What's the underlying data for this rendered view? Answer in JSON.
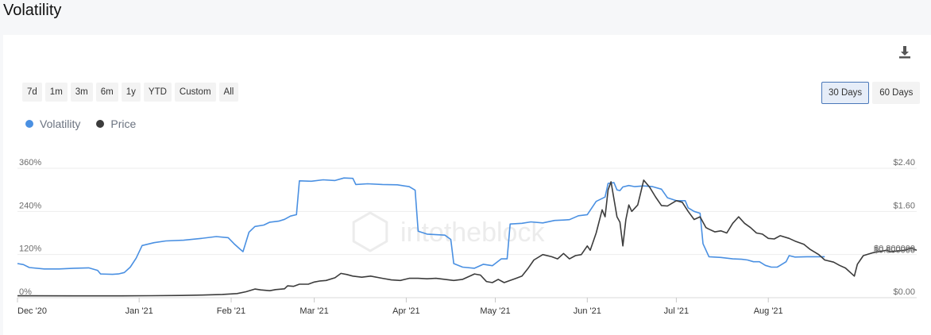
{
  "page": {
    "title": "Volatility"
  },
  "icons": {
    "download": "download-icon"
  },
  "controls": {
    "ranges": [
      "7d",
      "1m",
      "3m",
      "6m",
      "1y",
      "YTD",
      "Custom",
      "All"
    ],
    "windows": [
      "30 Days",
      "60 Days"
    ],
    "active_window": "30 Days"
  },
  "watermark": "intotheblock",
  "chart_data": {
    "type": "line",
    "legend": "top-left",
    "grid": true,
    "x_ticks": [
      "Dec '20",
      "Jan '21",
      "Feb '21",
      "Mar '21",
      "Apr '21",
      "May '21",
      "Jun '21",
      "Jul '21",
      "Aug '21"
    ],
    "y_left": {
      "ticks": [
        "0%",
        "120%",
        "240%",
        "360%"
      ],
      "range": [
        0,
        360
      ],
      "unit": "%"
    },
    "y_right": {
      "ticks": [
        "$0.00",
        "$0.800000",
        "$1.60",
        "$2.40"
      ],
      "range": [
        0,
        2.4
      ],
      "unit": "$"
    },
    "crosshair_label": "$0.800000",
    "series": [
      {
        "name": "Volatility",
        "axis": "left",
        "color": "#4a90e2",
        "points": [
          [
            "2020-12-01",
            95
          ],
          [
            "2020-12-03",
            92
          ],
          [
            "2020-12-05",
            84
          ],
          [
            "2020-12-10",
            80
          ],
          [
            "2020-12-15",
            80
          ],
          [
            "2020-12-20",
            82
          ],
          [
            "2020-12-25",
            83
          ],
          [
            "2020-12-28",
            76
          ],
          [
            "2020-12-29",
            66
          ],
          [
            "2021-01-02",
            65
          ],
          [
            "2021-01-04",
            66
          ],
          [
            "2021-01-06",
            70
          ],
          [
            "2021-01-08",
            85
          ],
          [
            "2021-01-10",
            110
          ],
          [
            "2021-01-12",
            145
          ],
          [
            "2021-01-16",
            153
          ],
          [
            "2021-01-20",
            158
          ],
          [
            "2021-01-26",
            160
          ],
          [
            "2021-02-01",
            165
          ],
          [
            "2021-02-06",
            170
          ],
          [
            "2021-02-10",
            167
          ],
          [
            "2021-02-12",
            150
          ],
          [
            "2021-02-14",
            135
          ],
          [
            "2021-02-15",
            128
          ],
          [
            "2021-02-17",
            182
          ],
          [
            "2021-02-19",
            198
          ],
          [
            "2021-02-22",
            202
          ],
          [
            "2021-02-24",
            210
          ],
          [
            "2021-02-27",
            213
          ],
          [
            "2021-03-01",
            218
          ],
          [
            "2021-03-03",
            227
          ],
          [
            "2021-03-05",
            231
          ],
          [
            "2021-03-06",
            325
          ],
          [
            "2021-03-10",
            324
          ],
          [
            "2021-03-14",
            328
          ],
          [
            "2021-03-18",
            326
          ],
          [
            "2021-03-21",
            333
          ],
          [
            "2021-03-24",
            332
          ],
          [
            "2021-03-25",
            315
          ],
          [
            "2021-03-29",
            317
          ],
          [
            "2021-04-03",
            315
          ],
          [
            "2021-04-08",
            314
          ],
          [
            "2021-04-12",
            309
          ],
          [
            "2021-04-14",
            299
          ],
          [
            "2021-04-15",
            185
          ],
          [
            "2021-04-18",
            177
          ],
          [
            "2021-04-24",
            174
          ],
          [
            "2021-04-26",
            162
          ],
          [
            "2021-04-27",
            95
          ],
          [
            "2021-04-30",
            85
          ],
          [
            "2021-05-04",
            82
          ],
          [
            "2021-05-07",
            93
          ],
          [
            "2021-05-10",
            89
          ],
          [
            "2021-05-13",
            108
          ],
          [
            "2021-05-15",
            108
          ],
          [
            "2021-05-16",
            205
          ],
          [
            "2021-05-20",
            207
          ],
          [
            "2021-05-23",
            211
          ],
          [
            "2021-05-27",
            208
          ],
          [
            "2021-05-31",
            215
          ],
          [
            "2021-06-03",
            216
          ],
          [
            "2021-06-05",
            217
          ],
          [
            "2021-06-08",
            228
          ],
          [
            "2021-06-11",
            231
          ],
          [
            "2021-06-14",
            268
          ],
          [
            "2021-06-17",
            280
          ],
          [
            "2021-06-18",
            318
          ],
          [
            "2021-06-20",
            320
          ],
          [
            "2021-06-21",
            300
          ],
          [
            "2021-06-22",
            298
          ],
          [
            "2021-06-23",
            308
          ],
          [
            "2021-06-25",
            312
          ],
          [
            "2021-06-27",
            309
          ],
          [
            "2021-06-30",
            311
          ],
          [
            "2021-07-03",
            309
          ],
          [
            "2021-07-06",
            302
          ],
          [
            "2021-07-08",
            278
          ],
          [
            "2021-07-11",
            270
          ],
          [
            "2021-07-14",
            270
          ],
          [
            "2021-07-15",
            250
          ],
          [
            "2021-07-17",
            240
          ],
          [
            "2021-07-19",
            235
          ],
          [
            "2021-07-20",
            150
          ],
          [
            "2021-07-22",
            114
          ],
          [
            "2021-07-26",
            112
          ],
          [
            "2021-07-30",
            108
          ],
          [
            "2021-08-02",
            107
          ],
          [
            "2021-08-04",
            105
          ],
          [
            "2021-08-06",
            100
          ],
          [
            "2021-08-08",
            100
          ],
          [
            "2021-08-10",
            90
          ],
          [
            "2021-08-12",
            85
          ],
          [
            "2021-08-14",
            85
          ],
          [
            "2021-08-15",
            90
          ],
          [
            "2021-08-17",
            100
          ],
          [
            "2021-08-18",
            117
          ],
          [
            "2021-08-20",
            113
          ],
          [
            "2021-08-24",
            114
          ],
          [
            "2021-08-30",
            114
          ]
        ]
      },
      {
        "name": "Price",
        "axis": "right",
        "color": "#3c3c3c",
        "points": [
          [
            "2020-12-01",
            0.035
          ],
          [
            "2020-12-20",
            0.034
          ],
          [
            "2021-01-05",
            0.034
          ],
          [
            "2021-01-15",
            0.037
          ],
          [
            "2021-01-25",
            0.041
          ],
          [
            "2021-02-01",
            0.049
          ],
          [
            "2021-02-08",
            0.06
          ],
          [
            "2021-02-13",
            0.077
          ],
          [
            "2021-02-16",
            0.11
          ],
          [
            "2021-02-19",
            0.16
          ],
          [
            "2021-02-21",
            0.145
          ],
          [
            "2021-02-24",
            0.13
          ],
          [
            "2021-02-26",
            0.15
          ],
          [
            "2021-03-01",
            0.165
          ],
          [
            "2021-03-02",
            0.22
          ],
          [
            "2021-03-04",
            0.21
          ],
          [
            "2021-03-06",
            0.25
          ],
          [
            "2021-03-09",
            0.25
          ],
          [
            "2021-03-11",
            0.29
          ],
          [
            "2021-03-13",
            0.31
          ],
          [
            "2021-03-15",
            0.32
          ],
          [
            "2021-03-18",
            0.37
          ],
          [
            "2021-03-20",
            0.45
          ],
          [
            "2021-03-22",
            0.43
          ],
          [
            "2021-03-24",
            0.4
          ],
          [
            "2021-03-27",
            0.38
          ],
          [
            "2021-03-30",
            0.4
          ],
          [
            "2021-04-03",
            0.36
          ],
          [
            "2021-04-06",
            0.33
          ],
          [
            "2021-04-09",
            0.32
          ],
          [
            "2021-04-12",
            0.36
          ],
          [
            "2021-04-15",
            0.36
          ],
          [
            "2021-04-18",
            0.35
          ],
          [
            "2021-04-21",
            0.36
          ],
          [
            "2021-04-24",
            0.34
          ],
          [
            "2021-04-27",
            0.32
          ],
          [
            "2021-04-30",
            0.34
          ],
          [
            "2021-05-02",
            0.39
          ],
          [
            "2021-05-04",
            0.44
          ],
          [
            "2021-05-06",
            0.42
          ],
          [
            "2021-05-08",
            0.3
          ],
          [
            "2021-05-10",
            0.28
          ],
          [
            "2021-05-12",
            0.34
          ],
          [
            "2021-05-14",
            0.28
          ],
          [
            "2021-05-16",
            0.32
          ],
          [
            "2021-05-18",
            0.36
          ],
          [
            "2021-05-20",
            0.4
          ],
          [
            "2021-05-22",
            0.54
          ],
          [
            "2021-05-24",
            0.7
          ],
          [
            "2021-05-27",
            0.8
          ],
          [
            "2021-05-30",
            0.76
          ],
          [
            "2021-06-01",
            0.72
          ],
          [
            "2021-06-03",
            0.82
          ],
          [
            "2021-06-05",
            0.72
          ],
          [
            "2021-06-07",
            0.78
          ],
          [
            "2021-06-09",
            0.8
          ],
          [
            "2021-06-11",
            0.96
          ],
          [
            "2021-06-12",
            0.88
          ],
          [
            "2021-06-14",
            1.2
          ],
          [
            "2021-06-16",
            1.63
          ],
          [
            "2021-06-17",
            1.5
          ],
          [
            "2021-06-18",
            2.0
          ],
          [
            "2021-06-19",
            2.15
          ],
          [
            "2021-06-21",
            1.5
          ],
          [
            "2021-06-22",
            1.4
          ],
          [
            "2021-06-23",
            0.96
          ],
          [
            "2021-06-24",
            1.45
          ],
          [
            "2021-06-25",
            1.72
          ],
          [
            "2021-06-26",
            1.6
          ],
          [
            "2021-06-28",
            1.72
          ],
          [
            "2021-06-29",
            1.95
          ],
          [
            "2021-06-30",
            2.18
          ],
          [
            "2021-07-02",
            2.05
          ],
          [
            "2021-07-04",
            1.87
          ],
          [
            "2021-07-06",
            1.71
          ],
          [
            "2021-07-08",
            1.7
          ],
          [
            "2021-07-11",
            1.8
          ],
          [
            "2021-07-13",
            1.77
          ],
          [
            "2021-07-15",
            1.6
          ],
          [
            "2021-07-17",
            1.45
          ],
          [
            "2021-07-19",
            1.5
          ],
          [
            "2021-07-21",
            1.3
          ],
          [
            "2021-07-22",
            1.27
          ],
          [
            "2021-07-24",
            1.22
          ],
          [
            "2021-07-26",
            1.24
          ],
          [
            "2021-07-28",
            1.2
          ],
          [
            "2021-07-30",
            1.38
          ],
          [
            "2021-08-01",
            1.5
          ],
          [
            "2021-08-03",
            1.38
          ],
          [
            "2021-08-05",
            1.3
          ],
          [
            "2021-08-07",
            1.2
          ],
          [
            "2021-08-09",
            1.18
          ],
          [
            "2021-08-11",
            1.1
          ],
          [
            "2021-08-13",
            1.09
          ],
          [
            "2021-08-15",
            1.15
          ],
          [
            "2021-08-18",
            1.1
          ],
          [
            "2021-08-20",
            1.05
          ],
          [
            "2021-08-23",
            0.99
          ],
          [
            "2021-08-25",
            0.9
          ],
          [
            "2021-08-28",
            0.8
          ],
          [
            "2021-08-30",
            0.7
          ],
          [
            "2021-09-02",
            0.66
          ],
          [
            "2021-09-04",
            0.6
          ],
          [
            "2021-09-06",
            0.55
          ],
          [
            "2021-09-09",
            0.4
          ],
          [
            "2021-09-10",
            0.62
          ],
          [
            "2021-09-12",
            0.78
          ],
          [
            "2021-09-15",
            0.83
          ],
          [
            "2021-09-18",
            0.86
          ],
          [
            "2021-09-20",
            0.88
          ],
          [
            "2021-09-21",
            0.85
          ],
          [
            "2021-09-24",
            0.87
          ],
          [
            "2021-09-26",
            0.88
          ],
          [
            "2021-09-28",
            0.92
          ],
          [
            "2021-09-30",
            0.88
          ]
        ]
      }
    ]
  }
}
